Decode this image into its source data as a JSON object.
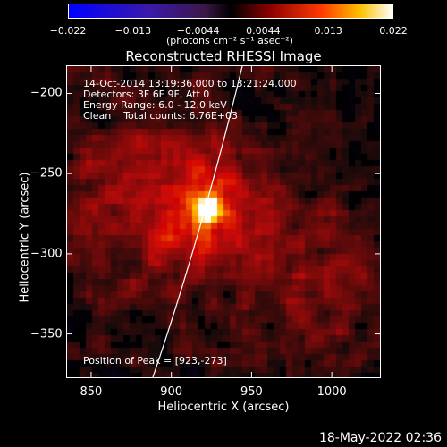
{
  "colorbar": {
    "ticks": [
      "−0.022",
      "−0.013",
      "−0.0044",
      "0.0044",
      "0.013",
      "0.022"
    ],
    "unit_label": "(photons cm⁻² s⁻¹ asec⁻²)"
  },
  "chart_data": {
    "type": "heatmap",
    "title": "Reconstructed RHESSI Image",
    "xlabel": "Heliocentric X (arcsec)",
    "ylabel": "Heliocentric Y (arcsec)",
    "xlim": [
      835,
      1030
    ],
    "ylim": [
      -377,
      -183
    ],
    "xticks": [
      "850",
      "900",
      "950",
      "1000"
    ],
    "yticks": [
      "−200",
      "−250",
      "−300",
      "−350"
    ],
    "color_range": [
      -0.022,
      0.022
    ],
    "peak": [
      923,
      -273
    ],
    "annotations": {
      "time": "14-Oct-2014 13:19:36.000 to 13:21:24.000",
      "detectors": "Detectors: 3F 6F 9F, Att 0",
      "energy": "Energy Range: 6.0 - 12.0 keV",
      "clean": "Clean    Total counts: 6.76E+03",
      "peak_text": "Position of Peak = [923,-273]"
    }
  },
  "footer": {
    "timestamp": "18-May-2022 02:36"
  }
}
